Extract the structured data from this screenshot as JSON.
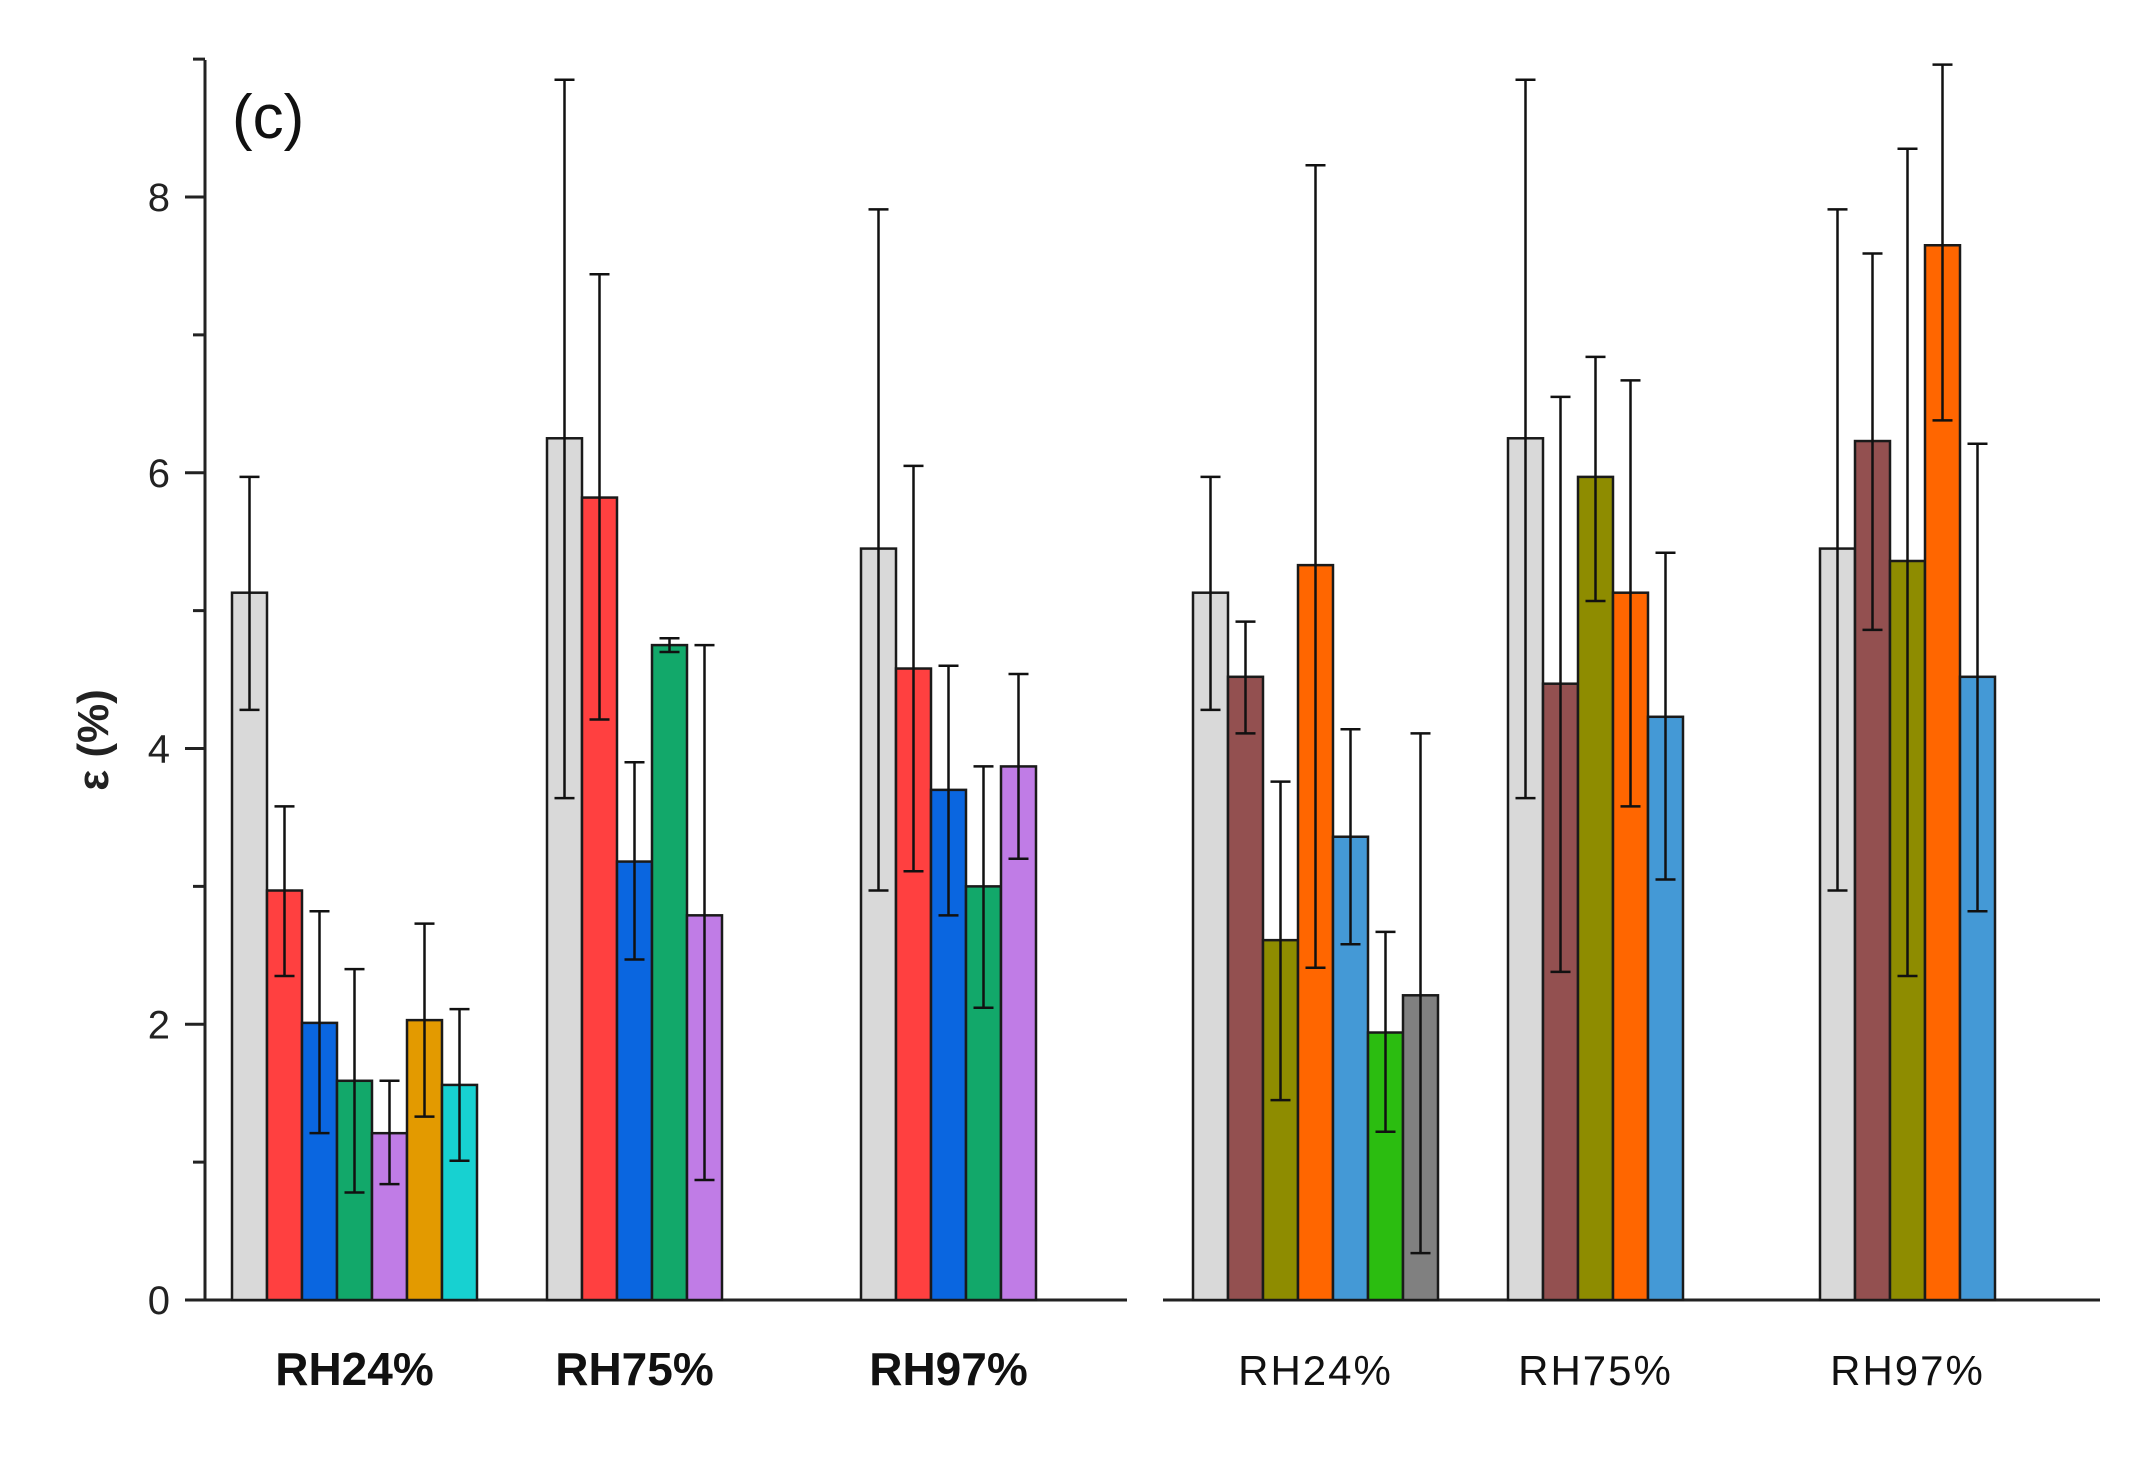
{
  "chart_data": {
    "type": "bar",
    "panel_label": "(c)",
    "ylabel": "ε (%)",
    "xlabel": "",
    "ylim": [
      0,
      9
    ],
    "yticks": [
      0,
      2,
      4,
      6,
      8
    ],
    "groups": [
      {
        "label": "RH24%",
        "style": "bold",
        "bars": [
          {
            "value": 5.13,
            "err_low": 4.28,
            "err_high": 5.97,
            "color": "#d9d9d9"
          },
          {
            "value": 2.97,
            "err_low": 2.35,
            "err_high": 3.58,
            "color": "#ff4040"
          },
          {
            "value": 2.01,
            "err_low": 1.21,
            "err_high": 2.82,
            "color": "#0a66e0"
          },
          {
            "value": 1.59,
            "err_low": 0.78,
            "err_high": 2.4,
            "color": "#12a86a"
          },
          {
            "value": 1.21,
            "err_low": 0.84,
            "err_high": 1.59,
            "color": "#c07ce6"
          },
          {
            "value": 2.03,
            "err_low": 1.33,
            "err_high": 2.73,
            "color": "#e39a00"
          },
          {
            "value": 1.56,
            "err_low": 1.01,
            "err_high": 2.11,
            "color": "#17d1d1"
          }
        ]
      },
      {
        "label": "RH75%",
        "style": "bold",
        "bars": [
          {
            "value": 6.25,
            "err_low": 3.64,
            "err_high": 8.85,
            "color": "#d9d9d9"
          },
          {
            "value": 5.82,
            "err_low": 4.21,
            "err_high": 7.44,
            "color": "#ff4040"
          },
          {
            "value": 3.18,
            "err_low": 2.47,
            "err_high": 3.9,
            "color": "#0a66e0"
          },
          {
            "value": 4.75,
            "err_low": 4.7,
            "err_high": 4.8,
            "color": "#12a86a"
          },
          {
            "value": 2.79,
            "err_low": 0.87,
            "err_high": 4.75,
            "color": "#c07ce6"
          }
        ]
      },
      {
        "label": "RH97%",
        "style": "bold",
        "bars": [
          {
            "value": 5.45,
            "err_low": 2.97,
            "err_high": 7.91,
            "color": "#d9d9d9"
          },
          {
            "value": 4.58,
            "err_low": 3.11,
            "err_high": 6.05,
            "color": "#ff4040"
          },
          {
            "value": 3.7,
            "err_low": 2.79,
            "err_high": 4.6,
            "color": "#0a66e0"
          },
          {
            "value": 3.0,
            "err_low": 2.12,
            "err_high": 3.87,
            "color": "#12a86a"
          },
          {
            "value": 3.87,
            "err_low": 3.2,
            "err_high": 4.54,
            "color": "#c07ce6"
          }
        ]
      },
      {
        "label": "RH24%",
        "style": "normal",
        "bars": [
          {
            "value": 5.13,
            "err_low": 4.28,
            "err_high": 5.97,
            "color": "#d9d9d9"
          },
          {
            "value": 4.52,
            "err_low": 4.11,
            "err_high": 4.92,
            "color": "#935050"
          },
          {
            "value": 2.61,
            "err_low": 1.45,
            "err_high": 3.76,
            "color": "#8e8c00"
          },
          {
            "value": 5.33,
            "err_low": 2.41,
            "err_high": 8.23,
            "color": "#ff6600"
          },
          {
            "value": 3.36,
            "err_low": 2.58,
            "err_high": 4.14,
            "color": "#4499d6"
          },
          {
            "value": 1.94,
            "err_low": 1.22,
            "err_high": 2.67,
            "color": "#2bbd10"
          },
          {
            "value": 2.21,
            "err_low": 0.34,
            "err_high": 4.11,
            "color": "#808080"
          }
        ]
      },
      {
        "label": "RH75%",
        "style": "normal",
        "bars": [
          {
            "value": 6.25,
            "err_low": 3.64,
            "err_high": 8.85,
            "color": "#d9d9d9"
          },
          {
            "value": 4.47,
            "err_low": 2.38,
            "err_high": 6.55,
            "color": "#935050"
          },
          {
            "value": 5.97,
            "err_low": 5.07,
            "err_high": 6.84,
            "color": "#8e8c00"
          },
          {
            "value": 5.13,
            "err_low": 3.58,
            "err_high": 6.67,
            "color": "#ff6600"
          },
          {
            "value": 4.23,
            "err_low": 3.05,
            "err_high": 5.42,
            "color": "#4499d6"
          }
        ]
      },
      {
        "label": "RH97%",
        "style": "normal",
        "bars": [
          {
            "value": 5.45,
            "err_low": 2.97,
            "err_high": 7.91,
            "color": "#d9d9d9"
          },
          {
            "value": 6.23,
            "err_low": 4.86,
            "err_high": 7.59,
            "color": "#935050"
          },
          {
            "value": 5.36,
            "err_low": 2.35,
            "err_high": 8.35,
            "color": "#8e8c00"
          },
          {
            "value": 7.65,
            "err_low": 6.38,
            "err_high": 8.96,
            "color": "#ff6600"
          },
          {
            "value": 4.52,
            "err_low": 2.82,
            "err_high": 6.21,
            "color": "#4499d6"
          }
        ]
      }
    ]
  }
}
